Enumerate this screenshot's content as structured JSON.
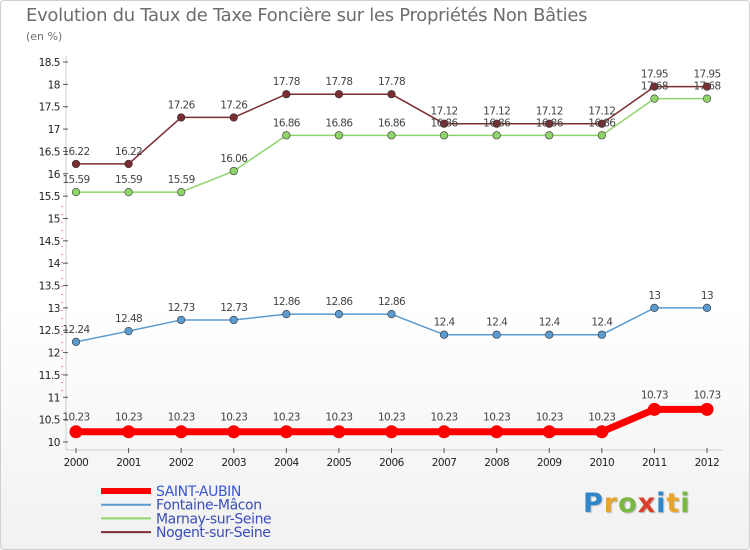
{
  "chart_data": {
    "type": "line",
    "title": "Evolution du Taux de Taxe Foncière sur les Propriétés Non Bâties",
    "ylabel": "(en %)",
    "xlabel": "",
    "x": [
      "2000",
      "2001",
      "2002",
      "2003",
      "2004",
      "2005",
      "2006",
      "2007",
      "2008",
      "2009",
      "2010",
      "2011",
      "2012"
    ],
    "ylim": [
      10,
      18.5
    ],
    "yticks": [
      "10",
      "10.5",
      "11",
      "11.5",
      "12",
      "12.5",
      "13",
      "13.5",
      "14",
      "14.5",
      "15",
      "15.5",
      "16",
      "16.5",
      "17",
      "17.5",
      "18",
      "18.5"
    ],
    "grid": false,
    "legend_position": "bottom-left",
    "series": [
      {
        "name": "SAINT-AUBIN",
        "color": "#ff0000",
        "values": [
          10.23,
          10.23,
          10.23,
          10.23,
          10.23,
          10.23,
          10.23,
          10.23,
          10.23,
          10.23,
          10.23,
          10.73,
          10.73
        ],
        "labels": [
          "10.23",
          "10.23",
          "10.23",
          "10.23",
          "10.23",
          "10.23",
          "10.23",
          "10.23",
          "10.23",
          "10.23",
          "10.23",
          "10.73",
          "10.73"
        ]
      },
      {
        "name": "Fontaine-Mâcon",
        "color": "#5b9bd0",
        "values": [
          12.24,
          12.48,
          12.73,
          12.73,
          12.86,
          12.86,
          12.86,
          12.4,
          12.4,
          12.4,
          12.4,
          13,
          13
        ],
        "labels": [
          "12.24",
          "12.48",
          "12.73",
          "12.73",
          "12.86",
          "12.86",
          "12.86",
          "12.4",
          "12.4",
          "12.4",
          "12.4",
          "13",
          "13"
        ]
      },
      {
        "name": "Marnay-sur-Seine",
        "color": "#8fd46b",
        "values": [
          15.59,
          15.59,
          15.59,
          16.06,
          16.86,
          16.86,
          16.86,
          16.86,
          16.86,
          16.86,
          16.86,
          17.68,
          17.68
        ],
        "labels": [
          "15.59",
          "15.59",
          "15.59",
          "16.06",
          "16.86",
          "16.86",
          "16.86",
          "16.86",
          "16.86",
          "16.86",
          "16.86",
          "17.68",
          "17.68"
        ]
      },
      {
        "name": "Nogent-sur-Seine",
        "color": "#7a2e33",
        "values": [
          16.22,
          16.22,
          17.26,
          17.26,
          17.78,
          17.78,
          17.78,
          17.12,
          17.12,
          17.12,
          17.12,
          17.95,
          17.95
        ],
        "labels": [
          "16.22",
          "16.22",
          "17.26",
          "17.26",
          "17.78",
          "17.78",
          "17.78",
          "17.12",
          "17.12",
          "17.12",
          "17.12",
          "17.95",
          "17.95"
        ]
      }
    ]
  },
  "logo": {
    "letters": [
      "P",
      "r",
      "o",
      "x",
      "i",
      "t",
      "i"
    ],
    "colors": [
      "#2f86c8",
      "#e9a52a",
      "#79b843",
      "#d8412b",
      "#2f86c8",
      "#e9a52a",
      "#79b843"
    ]
  }
}
